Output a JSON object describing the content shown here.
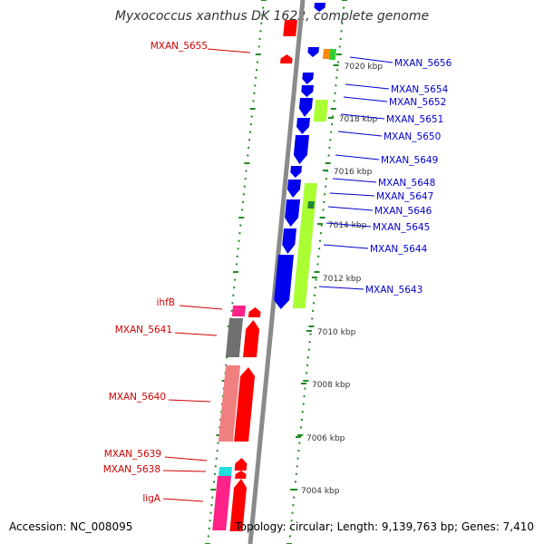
{
  "title": "Myxococcus xanthus DK 1622, complete genome",
  "accession": "Accession: NC_008095",
  "stats": "Topology: circular; Length: 9,139,763 bp; Genes: 7,410",
  "colors": {
    "backbone": "#8a8a8a",
    "dots": "#1e8a1e",
    "forward_strand": "#ff0000",
    "reverse_strand": "#0000ee",
    "forward_label": "#d00000",
    "reverse_label": "#0000cc",
    "lime": "#aaff33",
    "salmon": "#f08080",
    "gray_feature": "#707070",
    "magenta": "#ff2288",
    "cyan": "#22dddd",
    "orange": "#ff8800",
    "green": "#33cc33",
    "dark_green": "#228833"
  },
  "scale": {
    "ticks": [
      "7020 kbp",
      "7018 kbp",
      "7016 kbp",
      "7014 kbp",
      "7012 kbp",
      "7010 kbp",
      "7008 kbp",
      "7006 kbp",
      "7004 kbp"
    ]
  },
  "genes_forward": [
    "MXAN_5655",
    "ihfB",
    "MXAN_5641",
    "MXAN_5640",
    "MXAN_5639",
    "MXAN_5638",
    "ligA"
  ],
  "genes_reverse": [
    "MXAN_5656",
    "MXAN_5654",
    "MXAN_5652",
    "MXAN_5651",
    "MXAN_5650",
    "MXAN_5649",
    "MXAN_5648",
    "MXAN_5647",
    "MXAN_5646",
    "MXAN_5645",
    "MXAN_5644",
    "MXAN_5643"
  ]
}
